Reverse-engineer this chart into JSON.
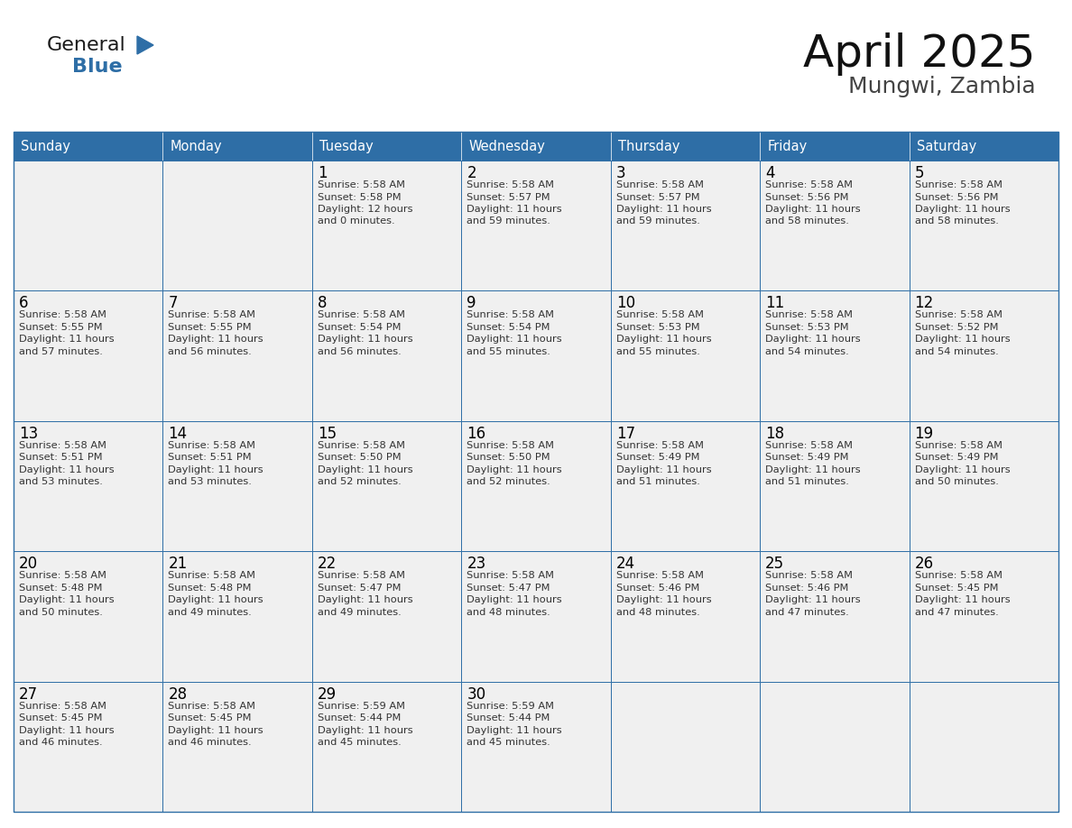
{
  "title": "April 2025",
  "subtitle": "Mungwi, Zambia",
  "days_of_week": [
    "Sunday",
    "Monday",
    "Tuesday",
    "Wednesday",
    "Thursday",
    "Friday",
    "Saturday"
  ],
  "header_bg": "#2E6EA6",
  "header_text": "#FFFFFF",
  "cell_bg": "#F0F0F0",
  "cell_border": "#2E6EA6",
  "day_number_color": "#000000",
  "cell_text_color": "#333333",
  "title_color": "#111111",
  "subtitle_color": "#444444",
  "general_color": "#1a1a1a",
  "blue_color": "#2E6EA6",
  "weeks": [
    [
      {
        "date": "",
        "sunrise": "",
        "sunset": "",
        "daylight_hours": "",
        "daylight_minutes": ""
      },
      {
        "date": "",
        "sunrise": "",
        "sunset": "",
        "daylight_hours": "",
        "daylight_minutes": ""
      },
      {
        "date": "1",
        "sunrise": "5:58 AM",
        "sunset": "5:58 PM",
        "daylight_hours": "12",
        "daylight_minutes": "0"
      },
      {
        "date": "2",
        "sunrise": "5:58 AM",
        "sunset": "5:57 PM",
        "daylight_hours": "11",
        "daylight_minutes": "59"
      },
      {
        "date": "3",
        "sunrise": "5:58 AM",
        "sunset": "5:57 PM",
        "daylight_hours": "11",
        "daylight_minutes": "59"
      },
      {
        "date": "4",
        "sunrise": "5:58 AM",
        "sunset": "5:56 PM",
        "daylight_hours": "11",
        "daylight_minutes": "58"
      },
      {
        "date": "5",
        "sunrise": "5:58 AM",
        "sunset": "5:56 PM",
        "daylight_hours": "11",
        "daylight_minutes": "58"
      }
    ],
    [
      {
        "date": "6",
        "sunrise": "5:58 AM",
        "sunset": "5:55 PM",
        "daylight_hours": "11",
        "daylight_minutes": "57"
      },
      {
        "date": "7",
        "sunrise": "5:58 AM",
        "sunset": "5:55 PM",
        "daylight_hours": "11",
        "daylight_minutes": "56"
      },
      {
        "date": "8",
        "sunrise": "5:58 AM",
        "sunset": "5:54 PM",
        "daylight_hours": "11",
        "daylight_minutes": "56"
      },
      {
        "date": "9",
        "sunrise": "5:58 AM",
        "sunset": "5:54 PM",
        "daylight_hours": "11",
        "daylight_minutes": "55"
      },
      {
        "date": "10",
        "sunrise": "5:58 AM",
        "sunset": "5:53 PM",
        "daylight_hours": "11",
        "daylight_minutes": "55"
      },
      {
        "date": "11",
        "sunrise": "5:58 AM",
        "sunset": "5:53 PM",
        "daylight_hours": "11",
        "daylight_minutes": "54"
      },
      {
        "date": "12",
        "sunrise": "5:58 AM",
        "sunset": "5:52 PM",
        "daylight_hours": "11",
        "daylight_minutes": "54"
      }
    ],
    [
      {
        "date": "13",
        "sunrise": "5:58 AM",
        "sunset": "5:51 PM",
        "daylight_hours": "11",
        "daylight_minutes": "53"
      },
      {
        "date": "14",
        "sunrise": "5:58 AM",
        "sunset": "5:51 PM",
        "daylight_hours": "11",
        "daylight_minutes": "53"
      },
      {
        "date": "15",
        "sunrise": "5:58 AM",
        "sunset": "5:50 PM",
        "daylight_hours": "11",
        "daylight_minutes": "52"
      },
      {
        "date": "16",
        "sunrise": "5:58 AM",
        "sunset": "5:50 PM",
        "daylight_hours": "11",
        "daylight_minutes": "52"
      },
      {
        "date": "17",
        "sunrise": "5:58 AM",
        "sunset": "5:49 PM",
        "daylight_hours": "11",
        "daylight_minutes": "51"
      },
      {
        "date": "18",
        "sunrise": "5:58 AM",
        "sunset": "5:49 PM",
        "daylight_hours": "11",
        "daylight_minutes": "51"
      },
      {
        "date": "19",
        "sunrise": "5:58 AM",
        "sunset": "5:49 PM",
        "daylight_hours": "11",
        "daylight_minutes": "50"
      }
    ],
    [
      {
        "date": "20",
        "sunrise": "5:58 AM",
        "sunset": "5:48 PM",
        "daylight_hours": "11",
        "daylight_minutes": "50"
      },
      {
        "date": "21",
        "sunrise": "5:58 AM",
        "sunset": "5:48 PM",
        "daylight_hours": "11",
        "daylight_minutes": "49"
      },
      {
        "date": "22",
        "sunrise": "5:58 AM",
        "sunset": "5:47 PM",
        "daylight_hours": "11",
        "daylight_minutes": "49"
      },
      {
        "date": "23",
        "sunrise": "5:58 AM",
        "sunset": "5:47 PM",
        "daylight_hours": "11",
        "daylight_minutes": "48"
      },
      {
        "date": "24",
        "sunrise": "5:58 AM",
        "sunset": "5:46 PM",
        "daylight_hours": "11",
        "daylight_minutes": "48"
      },
      {
        "date": "25",
        "sunrise": "5:58 AM",
        "sunset": "5:46 PM",
        "daylight_hours": "11",
        "daylight_minutes": "47"
      },
      {
        "date": "26",
        "sunrise": "5:58 AM",
        "sunset": "5:45 PM",
        "daylight_hours": "11",
        "daylight_minutes": "47"
      }
    ],
    [
      {
        "date": "27",
        "sunrise": "5:58 AM",
        "sunset": "5:45 PM",
        "daylight_hours": "11",
        "daylight_minutes": "46"
      },
      {
        "date": "28",
        "sunrise": "5:58 AM",
        "sunset": "5:45 PM",
        "daylight_hours": "11",
        "daylight_minutes": "46"
      },
      {
        "date": "29",
        "sunrise": "5:59 AM",
        "sunset": "5:44 PM",
        "daylight_hours": "11",
        "daylight_minutes": "45"
      },
      {
        "date": "30",
        "sunrise": "5:59 AM",
        "sunset": "5:44 PM",
        "daylight_hours": "11",
        "daylight_minutes": "45"
      },
      {
        "date": "",
        "sunrise": "",
        "sunset": "",
        "daylight_hours": "",
        "daylight_minutes": ""
      },
      {
        "date": "",
        "sunrise": "",
        "sunset": "",
        "daylight_hours": "",
        "daylight_minutes": ""
      },
      {
        "date": "",
        "sunrise": "",
        "sunset": "",
        "daylight_hours": "",
        "daylight_minutes": ""
      }
    ]
  ]
}
